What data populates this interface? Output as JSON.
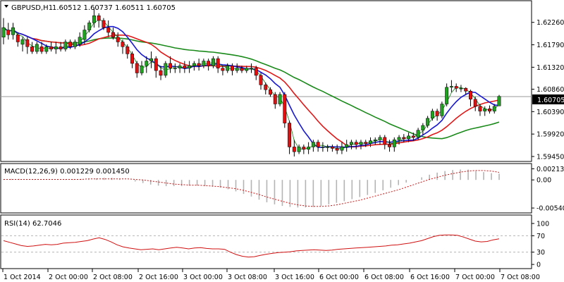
{
  "window": {
    "title_symbol": "GBPUSD,H1",
    "ohlc": "1.60512 1.60737 1.60511 1.60705",
    "current_price": "1.60705"
  },
  "colors": {
    "background": "#ffffff",
    "frame": "#000000",
    "grid": "#c8c8c8",
    "bull_body": "#22a022",
    "bear_body": "#e01010",
    "ma_blue": "#1818d0",
    "ma_red": "#e01818",
    "ma_green": "#1a8a1a",
    "ma_thin": "#158015",
    "macd_hist": "#b4b4b4",
    "macd_signal": "#d01010",
    "rsi_line": "#d01010",
    "rsi_levels": "#b4b4b4",
    "price_line": "#9a9a9a"
  },
  "chart_data": [
    {
      "type": "candlestick",
      "title": "GBPUSD,H1",
      "y_ticks": [
        "1.62260",
        "1.61790",
        "1.61320",
        "1.60860",
        "1.60390",
        "1.59920",
        "1.59450"
      ],
      "y_tick_values": [
        1.6226,
        1.6179,
        1.6132,
        1.6086,
        1.6039,
        1.5992,
        1.5945
      ],
      "ylim": [
        1.5942,
        1.6264
      ],
      "current_price": 1.60705,
      "x_ticks": [
        "1 Oct 2014",
        "2 Oct 00:00",
        "2 Oct 08:00",
        "2 Oct 16:00",
        "3 Oct 00:00",
        "3 Oct 08:00",
        "3 Oct 16:00",
        "6 Oct 00:00",
        "6 Oct 08:00",
        "6 Oct 16:00",
        "7 Oct 00:00",
        "7 Oct 08:00"
      ],
      "candles": [
        [
          1.6195,
          1.6215,
          1.6235,
          1.618
        ],
        [
          1.621,
          1.62,
          1.6225,
          1.619
        ],
        [
          1.62,
          1.6215,
          1.6225,
          1.619
        ],
        [
          1.62,
          1.6185,
          1.6205,
          1.6175
        ],
        [
          1.618,
          1.619,
          1.6195,
          1.6165
        ],
        [
          1.619,
          1.6175,
          1.6195,
          1.616
        ],
        [
          1.6175,
          1.6165,
          1.6185,
          1.616
        ],
        [
          1.6165,
          1.618,
          1.6185,
          1.616
        ],
        [
          1.6175,
          1.6165,
          1.6185,
          1.616
        ],
        [
          1.6165,
          1.6175,
          1.618,
          1.616
        ],
        [
          1.6175,
          1.617,
          1.6185,
          1.6165
        ],
        [
          1.617,
          1.6175,
          1.6185,
          1.616
        ],
        [
          1.6175,
          1.617,
          1.6185,
          1.6165
        ],
        [
          1.617,
          1.6185,
          1.619,
          1.6165
        ],
        [
          1.6185,
          1.6175,
          1.619,
          1.617
        ],
        [
          1.6175,
          1.6185,
          1.619,
          1.617
        ],
        [
          1.618,
          1.6195,
          1.6205,
          1.6175
        ],
        [
          1.619,
          1.621,
          1.622,
          1.618
        ],
        [
          1.621,
          1.6225,
          1.623,
          1.6205
        ],
        [
          1.6225,
          1.624,
          1.6255,
          1.6215
        ],
        [
          1.624,
          1.623,
          1.6245,
          1.6215
        ],
        [
          1.623,
          1.6215,
          1.6235,
          1.621
        ],
        [
          1.6215,
          1.6205,
          1.623,
          1.6195
        ],
        [
          1.6205,
          1.6195,
          1.6215,
          1.619
        ],
        [
          1.6195,
          1.6185,
          1.6205,
          1.6175
        ],
        [
          1.6185,
          1.6175,
          1.619,
          1.616
        ],
        [
          1.6175,
          1.616,
          1.618,
          1.615
        ],
        [
          1.616,
          1.614,
          1.6165,
          1.613
        ],
        [
          1.614,
          1.612,
          1.6145,
          1.611
        ],
        [
          1.612,
          1.6135,
          1.6145,
          1.6115
        ],
        [
          1.6135,
          1.6145,
          1.6155,
          1.612
        ],
        [
          1.6145,
          1.615,
          1.6165,
          1.613
        ],
        [
          1.615,
          1.6125,
          1.6155,
          1.611
        ],
        [
          1.6125,
          1.6115,
          1.6135,
          1.6105
        ],
        [
          1.6115,
          1.614,
          1.6145,
          1.611
        ],
        [
          1.614,
          1.613,
          1.6155,
          1.612
        ],
        [
          1.613,
          1.613,
          1.614,
          1.612
        ],
        [
          1.613,
          1.6135,
          1.614,
          1.612
        ],
        [
          1.6135,
          1.613,
          1.6145,
          1.612
        ],
        [
          1.613,
          1.6135,
          1.6145,
          1.612
        ],
        [
          1.6135,
          1.614,
          1.6145,
          1.6125
        ],
        [
          1.614,
          1.6135,
          1.615,
          1.6125
        ],
        [
          1.6135,
          1.6145,
          1.615,
          1.613
        ],
        [
          1.6145,
          1.6135,
          1.615,
          1.6125
        ],
        [
          1.6135,
          1.615,
          1.6155,
          1.613
        ],
        [
          1.615,
          1.613,
          1.6155,
          1.612
        ],
        [
          1.613,
          1.6125,
          1.6135,
          1.6115
        ],
        [
          1.6125,
          1.6135,
          1.614,
          1.612
        ],
        [
          1.6135,
          1.6125,
          1.614,
          1.6115
        ],
        [
          1.6125,
          1.613,
          1.614,
          1.612
        ],
        [
          1.613,
          1.6125,
          1.6135,
          1.612
        ],
        [
          1.6125,
          1.613,
          1.6135,
          1.612
        ],
        [
          1.613,
          1.613,
          1.614,
          1.612
        ],
        [
          1.613,
          1.6115,
          1.6135,
          1.6105
        ],
        [
          1.6115,
          1.6095,
          1.612,
          1.6085
        ],
        [
          1.6095,
          1.6085,
          1.61,
          1.6075
        ],
        [
          1.6085,
          1.6075,
          1.609,
          1.607
        ],
        [
          1.6075,
          1.6055,
          1.608,
          1.6045
        ],
        [
          1.6055,
          1.6075,
          1.608,
          1.605
        ],
        [
          1.6075,
          1.6015,
          1.608,
          1.6005
        ],
        [
          1.6015,
          1.5965,
          1.602,
          1.595
        ],
        [
          1.5965,
          1.5955,
          1.598,
          1.5945
        ],
        [
          1.5955,
          1.5965,
          1.597,
          1.595
        ],
        [
          1.5965,
          1.596,
          1.597,
          1.595
        ],
        [
          1.596,
          1.5965,
          1.5975,
          1.595
        ],
        [
          1.5965,
          1.5975,
          1.598,
          1.5955
        ],
        [
          1.5975,
          1.5965,
          1.598,
          1.5955
        ],
        [
          1.5965,
          1.5965,
          1.5975,
          1.5955
        ],
        [
          1.5965,
          1.5965,
          1.597,
          1.5955
        ],
        [
          1.5965,
          1.5962,
          1.597,
          1.5955
        ],
        [
          1.5962,
          1.5958,
          1.597,
          1.595
        ],
        [
          1.5958,
          1.5965,
          1.5975,
          1.595
        ],
        [
          1.5965,
          1.597,
          1.598,
          1.5955
        ],
        [
          1.597,
          1.5975,
          1.598,
          1.596
        ],
        [
          1.5975,
          1.597,
          1.598,
          1.596
        ],
        [
          1.597,
          1.5975,
          1.598,
          1.596
        ],
        [
          1.5975,
          1.5972,
          1.598,
          1.5965
        ],
        [
          1.5972,
          1.5978,
          1.5985,
          1.5965
        ],
        [
          1.5978,
          1.598,
          1.5985,
          1.597
        ],
        [
          1.598,
          1.5985,
          1.599,
          1.597
        ],
        [
          1.5985,
          1.597,
          1.599,
          1.596
        ],
        [
          1.597,
          1.5965,
          1.598,
          1.5955
        ],
        [
          1.5965,
          1.598,
          1.5985,
          1.5955
        ],
        [
          1.598,
          1.5985,
          1.599,
          1.597
        ],
        [
          1.5985,
          1.5982,
          1.5992,
          1.5975
        ],
        [
          1.5982,
          1.5988,
          1.5995,
          1.5975
        ],
        [
          1.5988,
          1.5985,
          1.5995,
          1.5978
        ],
        [
          1.5985,
          1.6,
          1.6005,
          1.598
        ],
        [
          1.6,
          1.601,
          1.6015,
          1.599
        ],
        [
          1.601,
          1.6025,
          1.603,
          1.6005
        ],
        [
          1.6025,
          1.604,
          1.6045,
          1.602
        ],
        [
          1.604,
          1.603,
          1.6045,
          1.602
        ],
        [
          1.603,
          1.6055,
          1.606,
          1.6025
        ],
        [
          1.6055,
          1.609,
          1.6098,
          1.605
        ],
        [
          1.609,
          1.6092,
          1.6105,
          1.608
        ],
        [
          1.6092,
          1.6088,
          1.6098,
          1.608
        ],
        [
          1.6088,
          1.6088,
          1.6095,
          1.608
        ],
        [
          1.6088,
          1.6082,
          1.609,
          1.6075
        ],
        [
          1.6082,
          1.6065,
          1.6085,
          1.605
        ],
        [
          1.6065,
          1.605,
          1.607,
          1.604
        ],
        [
          1.605,
          1.604,
          1.6055,
          1.603
        ],
        [
          1.604,
          1.6045,
          1.605,
          1.603
        ],
        [
          1.6045,
          1.604,
          1.6052,
          1.6035
        ],
        [
          1.604,
          1.605,
          1.6055,
          1.6035
        ],
        [
          1.6051,
          1.6071,
          1.6074,
          1.6051
        ]
      ]
    },
    {
      "type": "line",
      "title": "MACD(12,26,9) 0.001229 0.001450",
      "y_ticks": [
        "0.002135",
        "0.00",
        "-0.005403"
      ],
      "y_tick_values": [
        0.002135,
        0.0,
        -0.005403
      ],
      "ylim": [
        -0.0058,
        0.0026
      ],
      "series": [
        {
          "name": "MACD",
          "style": "histogram",
          "values": [
            0.0001,
            0.0002,
            0.0002,
            0.0001,
            0.0001,
            0.0,
            0.0,
            0.0001,
            0.0001,
            0.0001,
            0.0002,
            0.0002,
            0.0003,
            0.0004,
            0.0004,
            0.0002,
            0.0,
            -0.0003,
            -0.0006,
            -0.0009,
            -0.0011,
            -0.0012,
            -0.0012,
            -0.0012,
            -0.0011,
            -0.0011,
            -0.0012,
            -0.0013,
            -0.0015,
            -0.0018,
            -0.0022,
            -0.0027,
            -0.0032,
            -0.0038,
            -0.0043,
            -0.0047,
            -0.005,
            -0.0052,
            -0.0053,
            -0.0053,
            -0.0052,
            -0.005,
            -0.0047,
            -0.0044,
            -0.0041,
            -0.0037,
            -0.0033,
            -0.0029,
            -0.0025,
            -0.002,
            -0.0015,
            -0.001,
            -0.0005,
            0.0,
            0.0005,
            0.001,
            0.0014,
            0.0017,
            0.0019,
            0.002,
            0.002,
            0.0017,
            0.0015,
            0.0013,
            0.0012
          ]
        },
        {
          "name": "Signal",
          "style": "dotted",
          "values": [
            0.0001,
            0.0001,
            0.0001,
            0.0001,
            0.0001,
            0.0001,
            0.0001,
            0.0001,
            0.0001,
            0.0001,
            0.0001,
            0.0002,
            0.0002,
            0.0002,
            0.0002,
            0.0002,
            0.0002,
            0.0001,
            0.0,
            -0.0002,
            -0.0004,
            -0.0006,
            -0.0008,
            -0.0009,
            -0.001,
            -0.001,
            -0.0011,
            -0.0012,
            -0.0013,
            -0.0015,
            -0.0017,
            -0.002,
            -0.0024,
            -0.0028,
            -0.0033,
            -0.0037,
            -0.0041,
            -0.0045,
            -0.0048,
            -0.005,
            -0.0051,
            -0.0051,
            -0.005,
            -0.0048,
            -0.0045,
            -0.0042,
            -0.0039,
            -0.0035,
            -0.0031,
            -0.0027,
            -0.0023,
            -0.0019,
            -0.0014,
            -0.0009,
            -0.0004,
            0.0001,
            0.0005,
            0.0009,
            0.0012,
            0.0015,
            0.0017,
            0.0018,
            0.0018,
            0.0017,
            0.00145
          ]
        }
      ]
    },
    {
      "type": "line",
      "title": "RSI(14) 62.7046",
      "y_ticks": [
        "100",
        "70",
        "30",
        "0"
      ],
      "y_tick_values": [
        100,
        70,
        30,
        0
      ],
      "ylim": [
        -5,
        112
      ],
      "levels": [
        70,
        30
      ],
      "series": [
        {
          "name": "RSI(14)",
          "values": [
            58,
            54,
            50,
            46,
            44,
            45,
            47,
            49,
            48,
            49,
            52,
            53,
            54,
            56,
            58,
            62,
            65,
            61,
            55,
            48,
            43,
            40,
            38,
            36,
            37,
            38,
            36,
            38,
            40,
            42,
            40,
            38,
            40,
            41,
            39,
            38,
            38,
            37,
            30,
            24,
            20,
            18,
            19,
            22,
            25,
            27,
            29,
            30,
            31,
            33,
            34,
            35,
            36,
            35,
            34,
            35,
            37,
            38,
            39,
            40,
            41,
            42,
            43,
            44,
            45,
            47,
            48,
            50,
            52,
            55,
            58,
            63,
            68,
            71,
            72,
            72,
            71,
            67,
            62,
            57,
            55,
            56,
            60,
            62.7
          ]
        }
      ]
    }
  ]
}
